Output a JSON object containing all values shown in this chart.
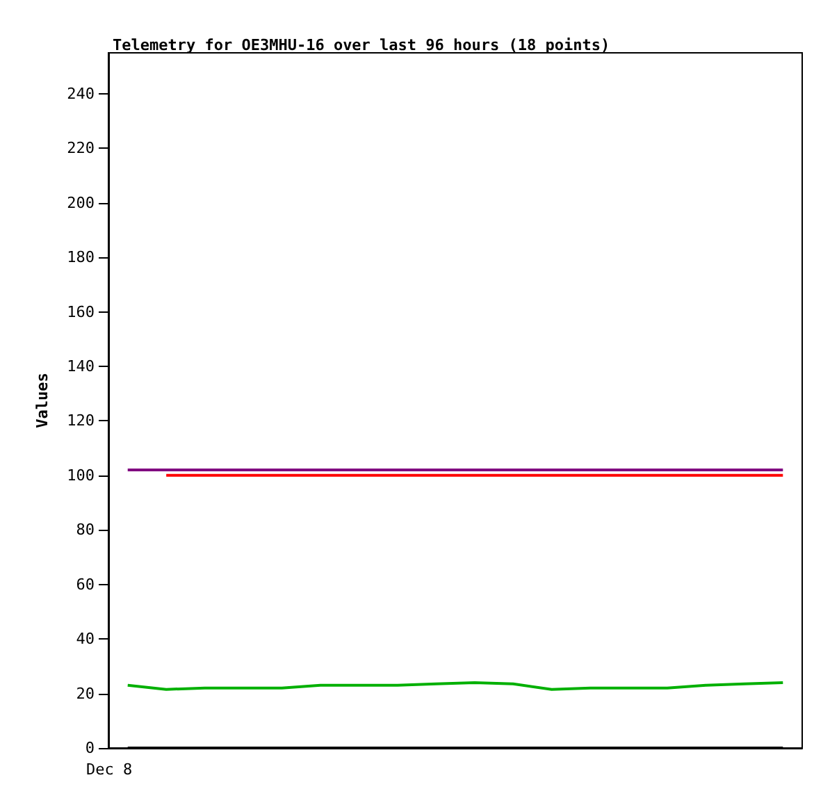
{
  "chart_data": {
    "type": "line",
    "title": "Telemetry for OE3MHU-16 over last 96 hours (18 points)",
    "ylabel": "Values",
    "categories": [
      null,
      null,
      null,
      null,
      null,
      null,
      null,
      null,
      null,
      null,
      null,
      null,
      null,
      null,
      null,
      null,
      null,
      null
    ],
    "annotations": [
      "Dec 8"
    ],
    "ylim": [
      0,
      255
    ],
    "yticks": [
      0,
      20,
      40,
      60,
      80,
      100,
      120,
      140,
      160,
      180,
      200,
      220,
      240
    ],
    "grid": false,
    "series": [
      {
        "color": "#800080",
        "values": [
          102,
          102,
          102,
          102,
          102,
          102,
          102,
          102,
          102,
          102,
          102,
          102,
          102,
          102,
          102,
          102,
          102,
          102
        ]
      },
      {
        "color": "#ff0000",
        "values": [
          null,
          100,
          100,
          100,
          100,
          100,
          100,
          100,
          100,
          100,
          100,
          100,
          100,
          100,
          100,
          100,
          100,
          100
        ]
      },
      {
        "color": "#00b000",
        "values": [
          23,
          21.5,
          22,
          22,
          22,
          23,
          23,
          23,
          23.5,
          24,
          23.5,
          21.5,
          22,
          22,
          22,
          23,
          23.5,
          24
        ]
      },
      {
        "color": "#000000",
        "values": [
          0,
          0,
          0,
          0,
          0,
          0,
          0,
          0,
          0,
          0,
          0,
          0,
          0,
          0,
          0,
          0,
          0,
          0
        ]
      }
    ]
  }
}
